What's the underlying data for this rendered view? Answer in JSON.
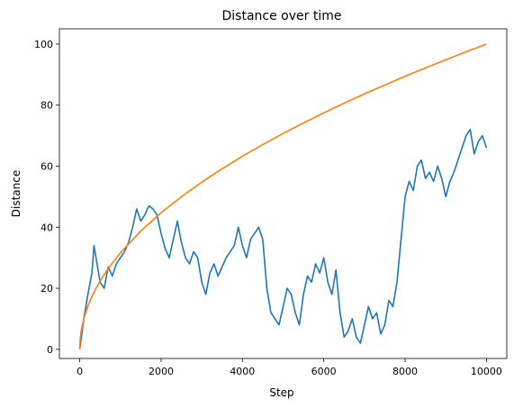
{
  "chart_data": {
    "type": "line",
    "title": "Distance over time",
    "xlabel": "Step",
    "ylabel": "Distance",
    "xlim": [
      -500,
      10500
    ],
    "ylim": [
      -3,
      105
    ],
    "xticks": [
      0,
      2000,
      4000,
      6000,
      8000,
      10000
    ],
    "yticks": [
      0,
      20,
      40,
      60,
      80,
      100
    ],
    "grid": false,
    "legend": "none",
    "series": [
      {
        "color": "#1f77b4",
        "description_of_shape": "random walk distance",
        "x": [
          0,
          100,
          200,
          300,
          350,
          400,
          500,
          600,
          700,
          800,
          900,
          1000,
          1100,
          1200,
          1300,
          1400,
          1500,
          1600,
          1700,
          1800,
          1900,
          2000,
          2100,
          2200,
          2300,
          2400,
          2500,
          2600,
          2700,
          2800,
          2900,
          3000,
          3100,
          3200,
          3300,
          3400,
          3500,
          3600,
          3700,
          3800,
          3900,
          4000,
          4100,
          4200,
          4300,
          4400,
          4500,
          4600,
          4700,
          4800,
          4900,
          5000,
          5100,
          5200,
          5300,
          5400,
          5500,
          5600,
          5700,
          5800,
          5900,
          6000,
          6100,
          6200,
          6300,
          6400,
          6500,
          6600,
          6700,
          6800,
          6900,
          7000,
          7100,
          7200,
          7300,
          7400,
          7500,
          7600,
          7700,
          7800,
          7900,
          8000,
          8100,
          8200,
          8300,
          8400,
          8500,
          8600,
          8700,
          8800,
          8900,
          9000,
          9100,
          9200,
          9300,
          9400,
          9500,
          9600,
          9700,
          9800,
          9900,
          10000
        ],
        "y": [
          0,
          10,
          18,
          25,
          34,
          30,
          22,
          20,
          27,
          24,
          28,
          30,
          32,
          35,
          40,
          46,
          42,
          44,
          47,
          46,
          44,
          38,
          33,
          30,
          36,
          42,
          35,
          30,
          28,
          32,
          30,
          22,
          18,
          25,
          28,
          24,
          27,
          30,
          32,
          34,
          40,
          34,
          30,
          36,
          38,
          40,
          36,
          20,
          12,
          10,
          8,
          14,
          20,
          18,
          12,
          8,
          18,
          24,
          22,
          28,
          25,
          30,
          22,
          18,
          26,
          12,
          4,
          6,
          10,
          4,
          2,
          8,
          14,
          10,
          12,
          5,
          8,
          16,
          14,
          22,
          36,
          50,
          55,
          52,
          60,
          62,
          56,
          58,
          55,
          60,
          56,
          50,
          55,
          58,
          62,
          66,
          70,
          72,
          64,
          68,
          70,
          66
        ]
      },
      {
        "color": "#ff7f0e",
        "description_of_shape": "square root curve",
        "x": [
          0,
          10,
          25,
          50,
          100,
          200,
          300,
          400,
          500,
          700,
          1000,
          1500,
          2000,
          2500,
          3000,
          3500,
          4000,
          4500,
          5000,
          5500,
          6000,
          6500,
          7000,
          7500,
          8000,
          8500,
          9000,
          9500,
          10000
        ],
        "y": [
          0,
          3.16,
          5,
          7.07,
          10,
          14.14,
          17.32,
          20,
          22.36,
          26.46,
          31.62,
          38.73,
          44.72,
          50,
          54.77,
          59.16,
          63.25,
          67.08,
          70.71,
          74.16,
          77.46,
          80.62,
          83.67,
          86.6,
          89.44,
          92.2,
          94.87,
          97.47,
          100
        ]
      }
    ]
  }
}
